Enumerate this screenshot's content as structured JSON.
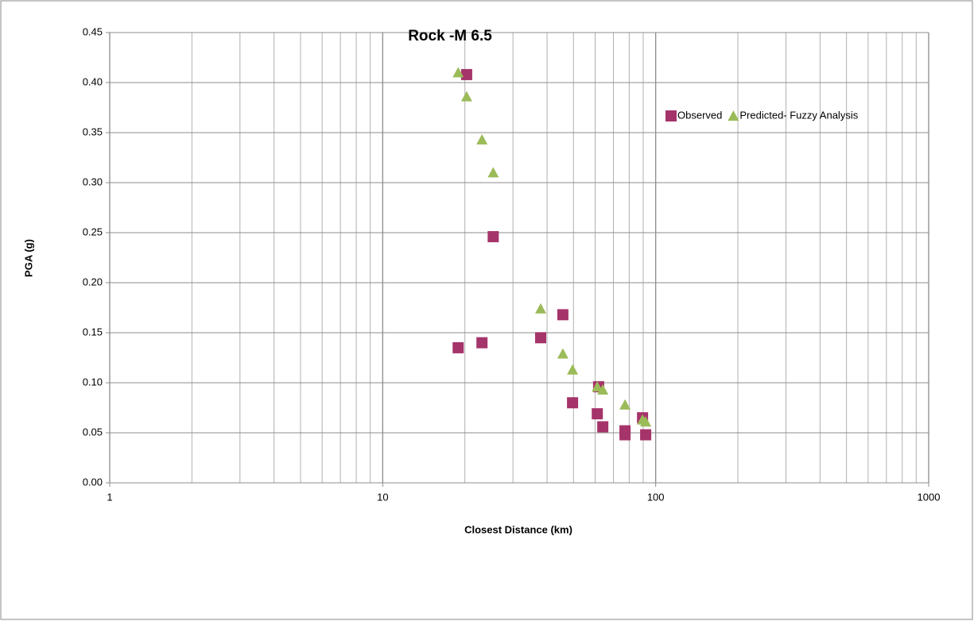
{
  "chart_data": {
    "type": "scatter",
    "title": "Rock -M 6.5",
    "x_label": "Closest Distance (km)",
    "y_label": "PGA (g)",
    "x_scale": "log",
    "xlim": [
      1,
      1000
    ],
    "xticks": [
      1,
      10,
      100,
      1000
    ],
    "ylim": [
      0,
      0.45
    ],
    "yticks": [
      {
        "value": 0,
        "label": "0.00"
      },
      {
        "value": 0.05,
        "label": "0.05"
      },
      {
        "value": 0.1,
        "label": "0.10"
      },
      {
        "value": 0.15,
        "label": "0.15"
      },
      {
        "value": 0.2,
        "label": "0.20"
      },
      {
        "value": 0.25,
        "label": "0.25"
      },
      {
        "value": 0.3,
        "label": "0.30"
      },
      {
        "value": 0.35,
        "label": "0.35"
      },
      {
        "value": 0.4,
        "label": "0.40"
      },
      {
        "value": 0.45,
        "label": "0.45"
      }
    ],
    "grid": true,
    "minor_grid": true,
    "legend": "upper right",
    "series": [
      {
        "name": "Observed",
        "color": "#a5346a",
        "marker": "square",
        "x": [
          20.3,
          25.4,
          18.9,
          23.1,
          37.9,
          45.7,
          49.6,
          61.8,
          61.1,
          64.0,
          77.2,
          77.2,
          89.5,
          91.9
        ],
        "values": [
          0.408,
          0.246,
          0.135,
          0.14,
          0.145,
          0.168,
          0.08,
          0.096,
          0.069,
          0.056,
          0.052,
          0.048,
          0.065,
          0.048
        ]
      },
      {
        "name": "Predicted- Fuzzy Analysis",
        "color": "#9bbb59",
        "marker": "triangle",
        "x": [
          18.9,
          20.3,
          23.1,
          25.4,
          37.9,
          45.7,
          49.6,
          61.1,
          64.0,
          77.2,
          89.5,
          91.9
        ],
        "values": [
          0.41,
          0.386,
          0.343,
          0.31,
          0.174,
          0.129,
          0.113,
          0.096,
          0.093,
          0.078,
          0.063,
          0.061
        ]
      }
    ]
  }
}
